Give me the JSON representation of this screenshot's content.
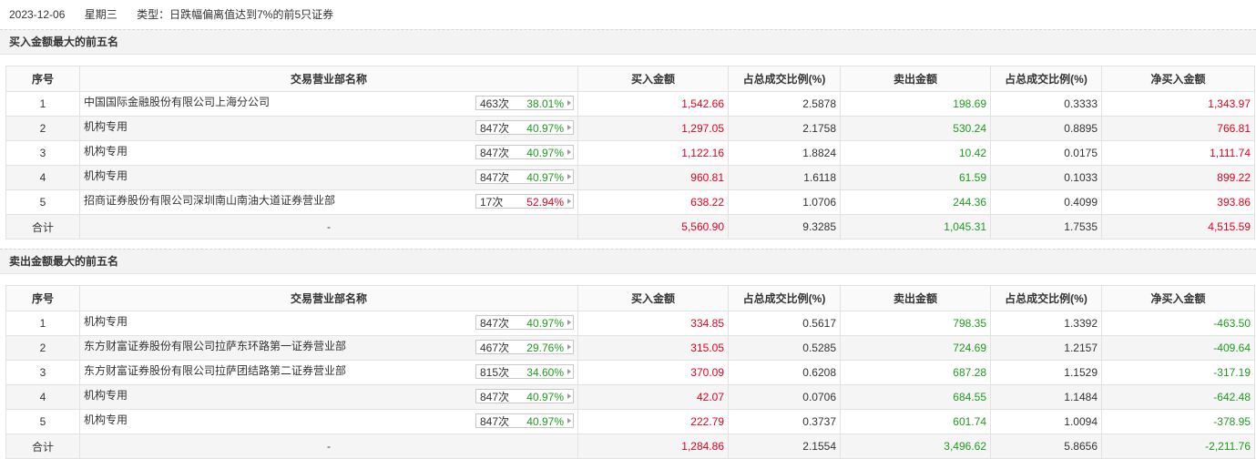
{
  "header": {
    "date": "2023-12-06",
    "weekday": "星期三",
    "type": "类型：日跌幅偏离值达到7%的前5只证券"
  },
  "columns": [
    "序号",
    "交易营业部名称",
    "买入金额",
    "占总成交比例(%)",
    "卖出金额",
    "占总成交比例(%)",
    "净买入金额"
  ],
  "buy_section": {
    "title": "买入金额最大的前五名",
    "rows": [
      {
        "idx": "1",
        "name": "中国国际金融股份有限公司上海分公司",
        "count": "463次",
        "pct": "38.01%",
        "buy": "1,542.66",
        "buy_ratio": "2.5878",
        "sell": "198.69",
        "sell_ratio": "0.3333",
        "net": "1,343.97"
      },
      {
        "idx": "2",
        "name": "机构专用",
        "count": "847次",
        "pct": "40.97%",
        "buy": "1,297.05",
        "buy_ratio": "2.1758",
        "sell": "530.24",
        "sell_ratio": "0.8895",
        "net": "766.81"
      },
      {
        "idx": "3",
        "name": "机构专用",
        "count": "847次",
        "pct": "40.97%",
        "buy": "1,122.16",
        "buy_ratio": "1.8824",
        "sell": "10.42",
        "sell_ratio": "0.0175",
        "net": "1,111.74"
      },
      {
        "idx": "4",
        "name": "机构专用",
        "count": "847次",
        "pct": "40.97%",
        "buy": "960.81",
        "buy_ratio": "1.6118",
        "sell": "61.59",
        "sell_ratio": "0.1033",
        "net": "899.22"
      },
      {
        "idx": "5",
        "name": "招商证券股份有限公司深圳南山南油大道证券营业部",
        "count": "17次",
        "pct": "52.94%",
        "buy": "638.22",
        "buy_ratio": "1.0706",
        "sell": "244.36",
        "sell_ratio": "0.4099",
        "net": "393.86"
      }
    ],
    "total": {
      "label": "合计",
      "name": "-",
      "buy": "5,560.90",
      "buy_ratio": "9.3285",
      "sell": "1,045.31",
      "sell_ratio": "1.7535",
      "net": "4,515.59"
    }
  },
  "sell_section": {
    "title": "卖出金额最大的前五名",
    "rows": [
      {
        "idx": "1",
        "name": "机构专用",
        "count": "847次",
        "pct": "40.97%",
        "buy": "334.85",
        "buy_ratio": "0.5617",
        "sell": "798.35",
        "sell_ratio": "1.3392",
        "net": "-463.50"
      },
      {
        "idx": "2",
        "name": "东方财富证券股份有限公司拉萨东环路第一证券营业部",
        "count": "467次",
        "pct": "29.76%",
        "buy": "315.05",
        "buy_ratio": "0.5285",
        "sell": "724.69",
        "sell_ratio": "1.2157",
        "net": "-409.64"
      },
      {
        "idx": "3",
        "name": "东方财富证券股份有限公司拉萨团结路第二证券营业部",
        "count": "815次",
        "pct": "34.60%",
        "buy": "370.09",
        "buy_ratio": "0.6208",
        "sell": "687.28",
        "sell_ratio": "1.1529",
        "net": "-317.19"
      },
      {
        "idx": "4",
        "name": "机构专用",
        "count": "847次",
        "pct": "40.97%",
        "buy": "42.07",
        "buy_ratio": "0.0706",
        "sell": "684.55",
        "sell_ratio": "1.1484",
        "net": "-642.48"
      },
      {
        "idx": "5",
        "name": "机构专用",
        "count": "847次",
        "pct": "40.97%",
        "buy": "222.79",
        "buy_ratio": "0.3737",
        "sell": "601.74",
        "sell_ratio": "1.0094",
        "net": "-378.95"
      }
    ],
    "total": {
      "label": "合计",
      "name": "-",
      "buy": "1,284.86",
      "buy_ratio": "2.1554",
      "sell": "3,496.62",
      "sell_ratio": "5.8656",
      "net": "-2,211.76"
    }
  },
  "colors": {
    "up": "#e4001c",
    "down": "#1e9b1e"
  }
}
